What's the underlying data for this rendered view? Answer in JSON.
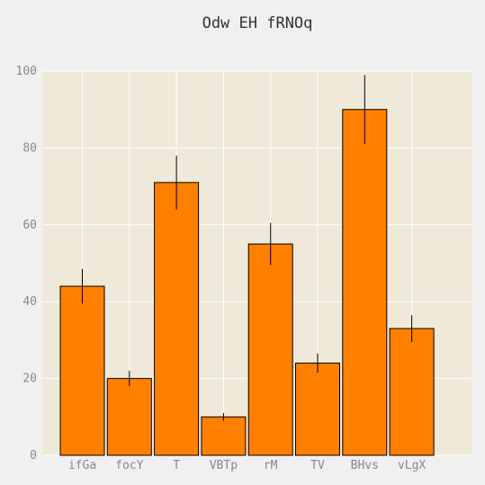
{
  "chart_data": {
    "type": "bar",
    "title": "Odw EH fRNOq",
    "xlabel": "",
    "ylabel": "",
    "categories": [
      "ifGa",
      "focY",
      "T",
      "VBTp",
      "rM",
      "TV",
      "BHvs",
      "vLgX"
    ],
    "values": [
      44,
      20,
      71,
      10,
      55,
      24,
      90,
      33
    ],
    "errors": [
      4.5,
      2.0,
      7.0,
      1.0,
      5.5,
      2.5,
      9.0,
      3.5
    ],
    "ylim": [
      0,
      100
    ],
    "yticks": [
      0,
      20,
      40,
      60,
      80,
      100
    ],
    "grid": true,
    "colors": {
      "bar": "#ff7f00",
      "bar_edge": "#000000",
      "plot_background": "#efe9d9",
      "page_background": "#f0f0f0",
      "grid": "#ffffff",
      "error_bar": "#000000"
    }
  }
}
